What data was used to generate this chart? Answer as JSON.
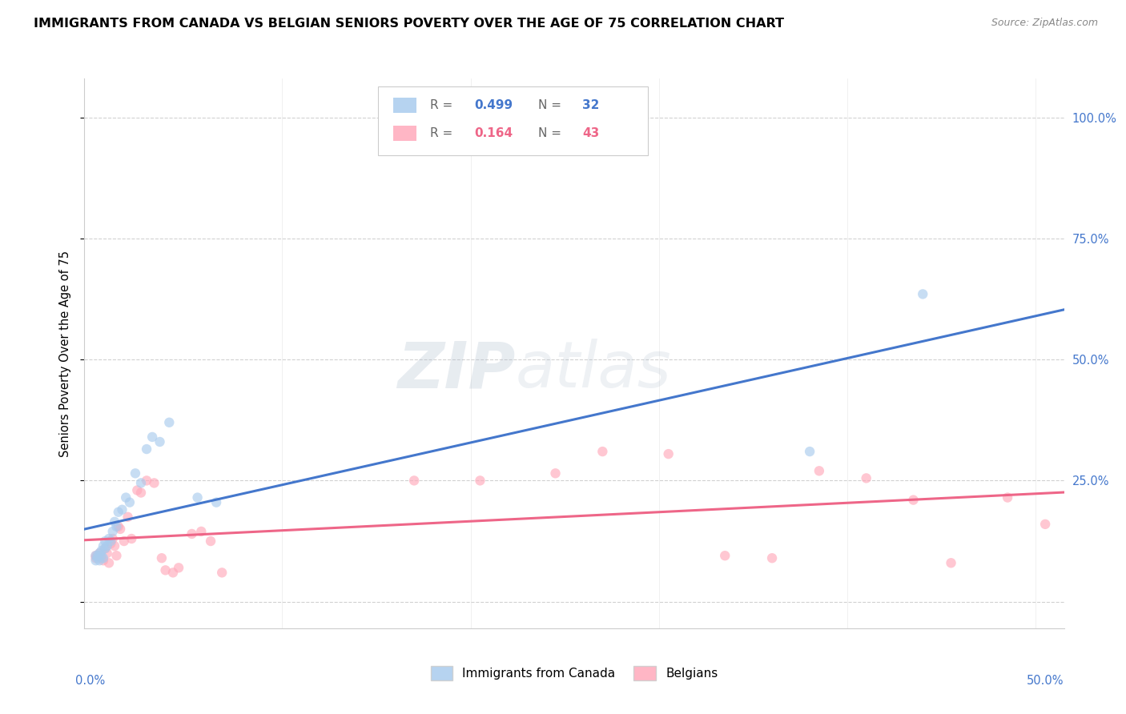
{
  "title": "IMMIGRANTS FROM CANADA VS BELGIAN SENIORS POVERTY OVER THE AGE OF 75 CORRELATION CHART",
  "source": "Source: ZipAtlas.com",
  "ylabel": "Seniors Poverty Over the Age of 75",
  "blue_color": "#AACCEE",
  "pink_color": "#FFAABB",
  "blue_line_color": "#4477CC",
  "pink_line_color": "#EE6688",
  "legend_blue_r": "0.499",
  "legend_blue_n": "32",
  "legend_pink_r": "0.164",
  "legend_pink_n": "43",
  "legend_label_blue": "Immigrants from Canada",
  "legend_label_pink": "Belgians",
  "watermark_zip": "ZIP",
  "watermark_atlas": "atlas",
  "xlim": [
    -0.005,
    0.515
  ],
  "ylim": [
    -0.055,
    1.08
  ],
  "yticks": [
    0.0,
    0.25,
    0.5,
    0.75,
    1.0
  ],
  "ytick_labels": [
    "",
    "25.0%",
    "50.0%",
    "75.0%",
    "100.0%"
  ],
  "blue_points_x": [
    0.001,
    0.001,
    0.002,
    0.002,
    0.003,
    0.003,
    0.004,
    0.004,
    0.005,
    0.005,
    0.006,
    0.006,
    0.007,
    0.008,
    0.009,
    0.01,
    0.011,
    0.012,
    0.013,
    0.015,
    0.017,
    0.019,
    0.022,
    0.025,
    0.028,
    0.031,
    0.035,
    0.04,
    0.055,
    0.065,
    0.38,
    0.44
  ],
  "blue_points_y": [
    0.095,
    0.085,
    0.09,
    0.095,
    0.1,
    0.085,
    0.095,
    0.105,
    0.09,
    0.115,
    0.11,
    0.125,
    0.115,
    0.13,
    0.125,
    0.145,
    0.165,
    0.155,
    0.185,
    0.19,
    0.215,
    0.205,
    0.265,
    0.245,
    0.315,
    0.34,
    0.33,
    0.37,
    0.215,
    0.205,
    0.31,
    0.635
  ],
  "pink_points_x": [
    0.001,
    0.001,
    0.002,
    0.003,
    0.004,
    0.005,
    0.006,
    0.007,
    0.008,
    0.009,
    0.01,
    0.011,
    0.012,
    0.013,
    0.014,
    0.016,
    0.018,
    0.02,
    0.023,
    0.025,
    0.028,
    0.032,
    0.036,
    0.038,
    0.042,
    0.045,
    0.052,
    0.057,
    0.062,
    0.068,
    0.17,
    0.205,
    0.245,
    0.27,
    0.305,
    0.335,
    0.36,
    0.385,
    0.41,
    0.435,
    0.455,
    0.485,
    0.505
  ],
  "pink_points_y": [
    0.09,
    0.095,
    0.095,
    0.1,
    0.09,
    0.085,
    0.11,
    0.1,
    0.08,
    0.12,
    0.13,
    0.115,
    0.095,
    0.155,
    0.15,
    0.125,
    0.175,
    0.13,
    0.23,
    0.225,
    0.25,
    0.245,
    0.09,
    0.065,
    0.06,
    0.07,
    0.14,
    0.145,
    0.125,
    0.06,
    0.25,
    0.25,
    0.265,
    0.31,
    0.305,
    0.095,
    0.09,
    0.27,
    0.255,
    0.21,
    0.08,
    0.215,
    0.16
  ],
  "marker_size": 80,
  "grid_color": "#CCCCCC",
  "title_fontsize": 11.5,
  "source_fontsize": 9,
  "axis_label_fontsize": 10.5,
  "tick_fontsize": 10.5,
  "legend_fontsize": 11
}
